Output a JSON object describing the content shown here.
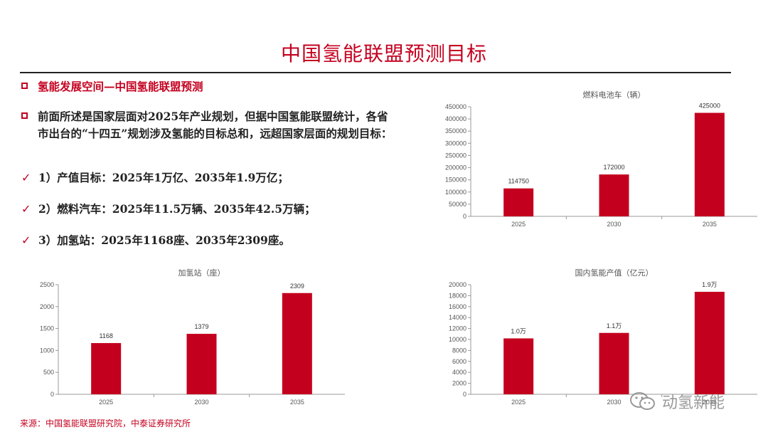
{
  "page": {
    "title": "中国氢能联盟预测目标",
    "source": "来源：中国氢能联盟研究院，中泰证券研究所",
    "watermark": "动氢新能"
  },
  "bullets": {
    "heading": "氢能发展空间—中国氢能联盟预测",
    "intro": "前面所述是国家层面对2025年产业规划，但据中国氢能联盟统计，各省市出台的“十四五”规划涉及氢能的目标总和，远超国家层面的规划目标：",
    "items": [
      "1）产值目标：2025年1万亿、2035年1.9万亿；",
      "2）燃料汽车：2025年11.5万辆、2035年42.5万辆；",
      "3）加氢站：2025年1168座、2035年2309座。"
    ]
  },
  "colors": {
    "accent": "#c4001f",
    "bar": "#c4001f",
    "text": "#222222"
  },
  "icons": {
    "bullet": "square-bullet-icon",
    "check": "check-icon",
    "watermark": "wechat-logo-icon"
  },
  "chart_data": [
    {
      "id": "fuel_cell_vehicles",
      "type": "bar",
      "title": "燃料电池车（辆）",
      "categories": [
        "2025",
        "2030",
        "2035"
      ],
      "values": [
        114750,
        172000,
        425000
      ],
      "value_labels": [
        "114750",
        "172000",
        "425000"
      ],
      "ylim": [
        0,
        450000
      ],
      "yticks": [
        0,
        50000,
        100000,
        150000,
        200000,
        250000,
        300000,
        350000,
        400000,
        450000
      ],
      "grid": false
    },
    {
      "id": "hydrogen_stations",
      "type": "bar",
      "title": "加氢站（座）",
      "categories": [
        "2025",
        "2030",
        "2035"
      ],
      "values": [
        1168,
        1379,
        2309
      ],
      "value_labels": [
        "1168",
        "1379",
        "2309"
      ],
      "ylim": [
        0,
        2500
      ],
      "yticks": [
        0,
        500,
        1000,
        1500,
        2000,
        2500
      ],
      "grid": false
    },
    {
      "id": "hydrogen_output_value",
      "type": "bar",
      "title": "国内氢能产值（亿元）",
      "categories": [
        "2025",
        "2030",
        "2035"
      ],
      "values": [
        10200,
        11200,
        18700
      ],
      "value_labels": [
        "1.0万",
        "1.1万",
        "1.9万"
      ],
      "ylim": [
        0,
        20000
      ],
      "yticks": [
        0,
        2000,
        4000,
        6000,
        8000,
        10000,
        12000,
        14000,
        16000,
        18000,
        20000
      ],
      "grid": false
    }
  ]
}
